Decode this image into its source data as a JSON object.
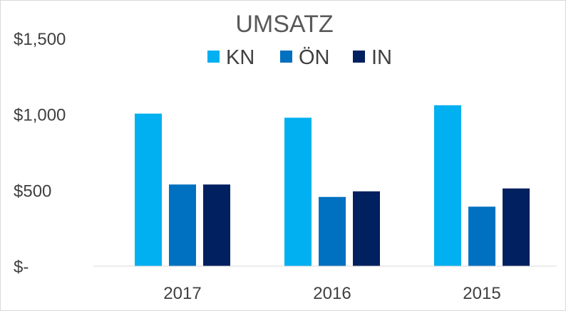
{
  "chart_data": {
    "type": "bar",
    "title": "UMSATZ",
    "categories": [
      "2017",
      "2016",
      "2015"
    ],
    "series": [
      {
        "name": "KN",
        "values": [
          1005,
          978,
          1060
        ],
        "color": "#00b0f0"
      },
      {
        "name": "ÖN",
        "values": [
          538,
          456,
          392
        ],
        "color": "#0070c0"
      },
      {
        "name": "IN",
        "values": [
          538,
          493,
          512
        ],
        "color": "#002060"
      }
    ],
    "y_ticks": [
      {
        "value": 0,
        "label": "$-"
      },
      {
        "value": 500,
        "label": "$500"
      },
      {
        "value": 1000,
        "label": "$1,000"
      },
      {
        "value": 1500,
        "label": "$1,500"
      }
    ],
    "ylim": [
      0,
      1500
    ],
    "xlabel": "",
    "ylabel": "",
    "grid": false,
    "legend_position": "top"
  }
}
